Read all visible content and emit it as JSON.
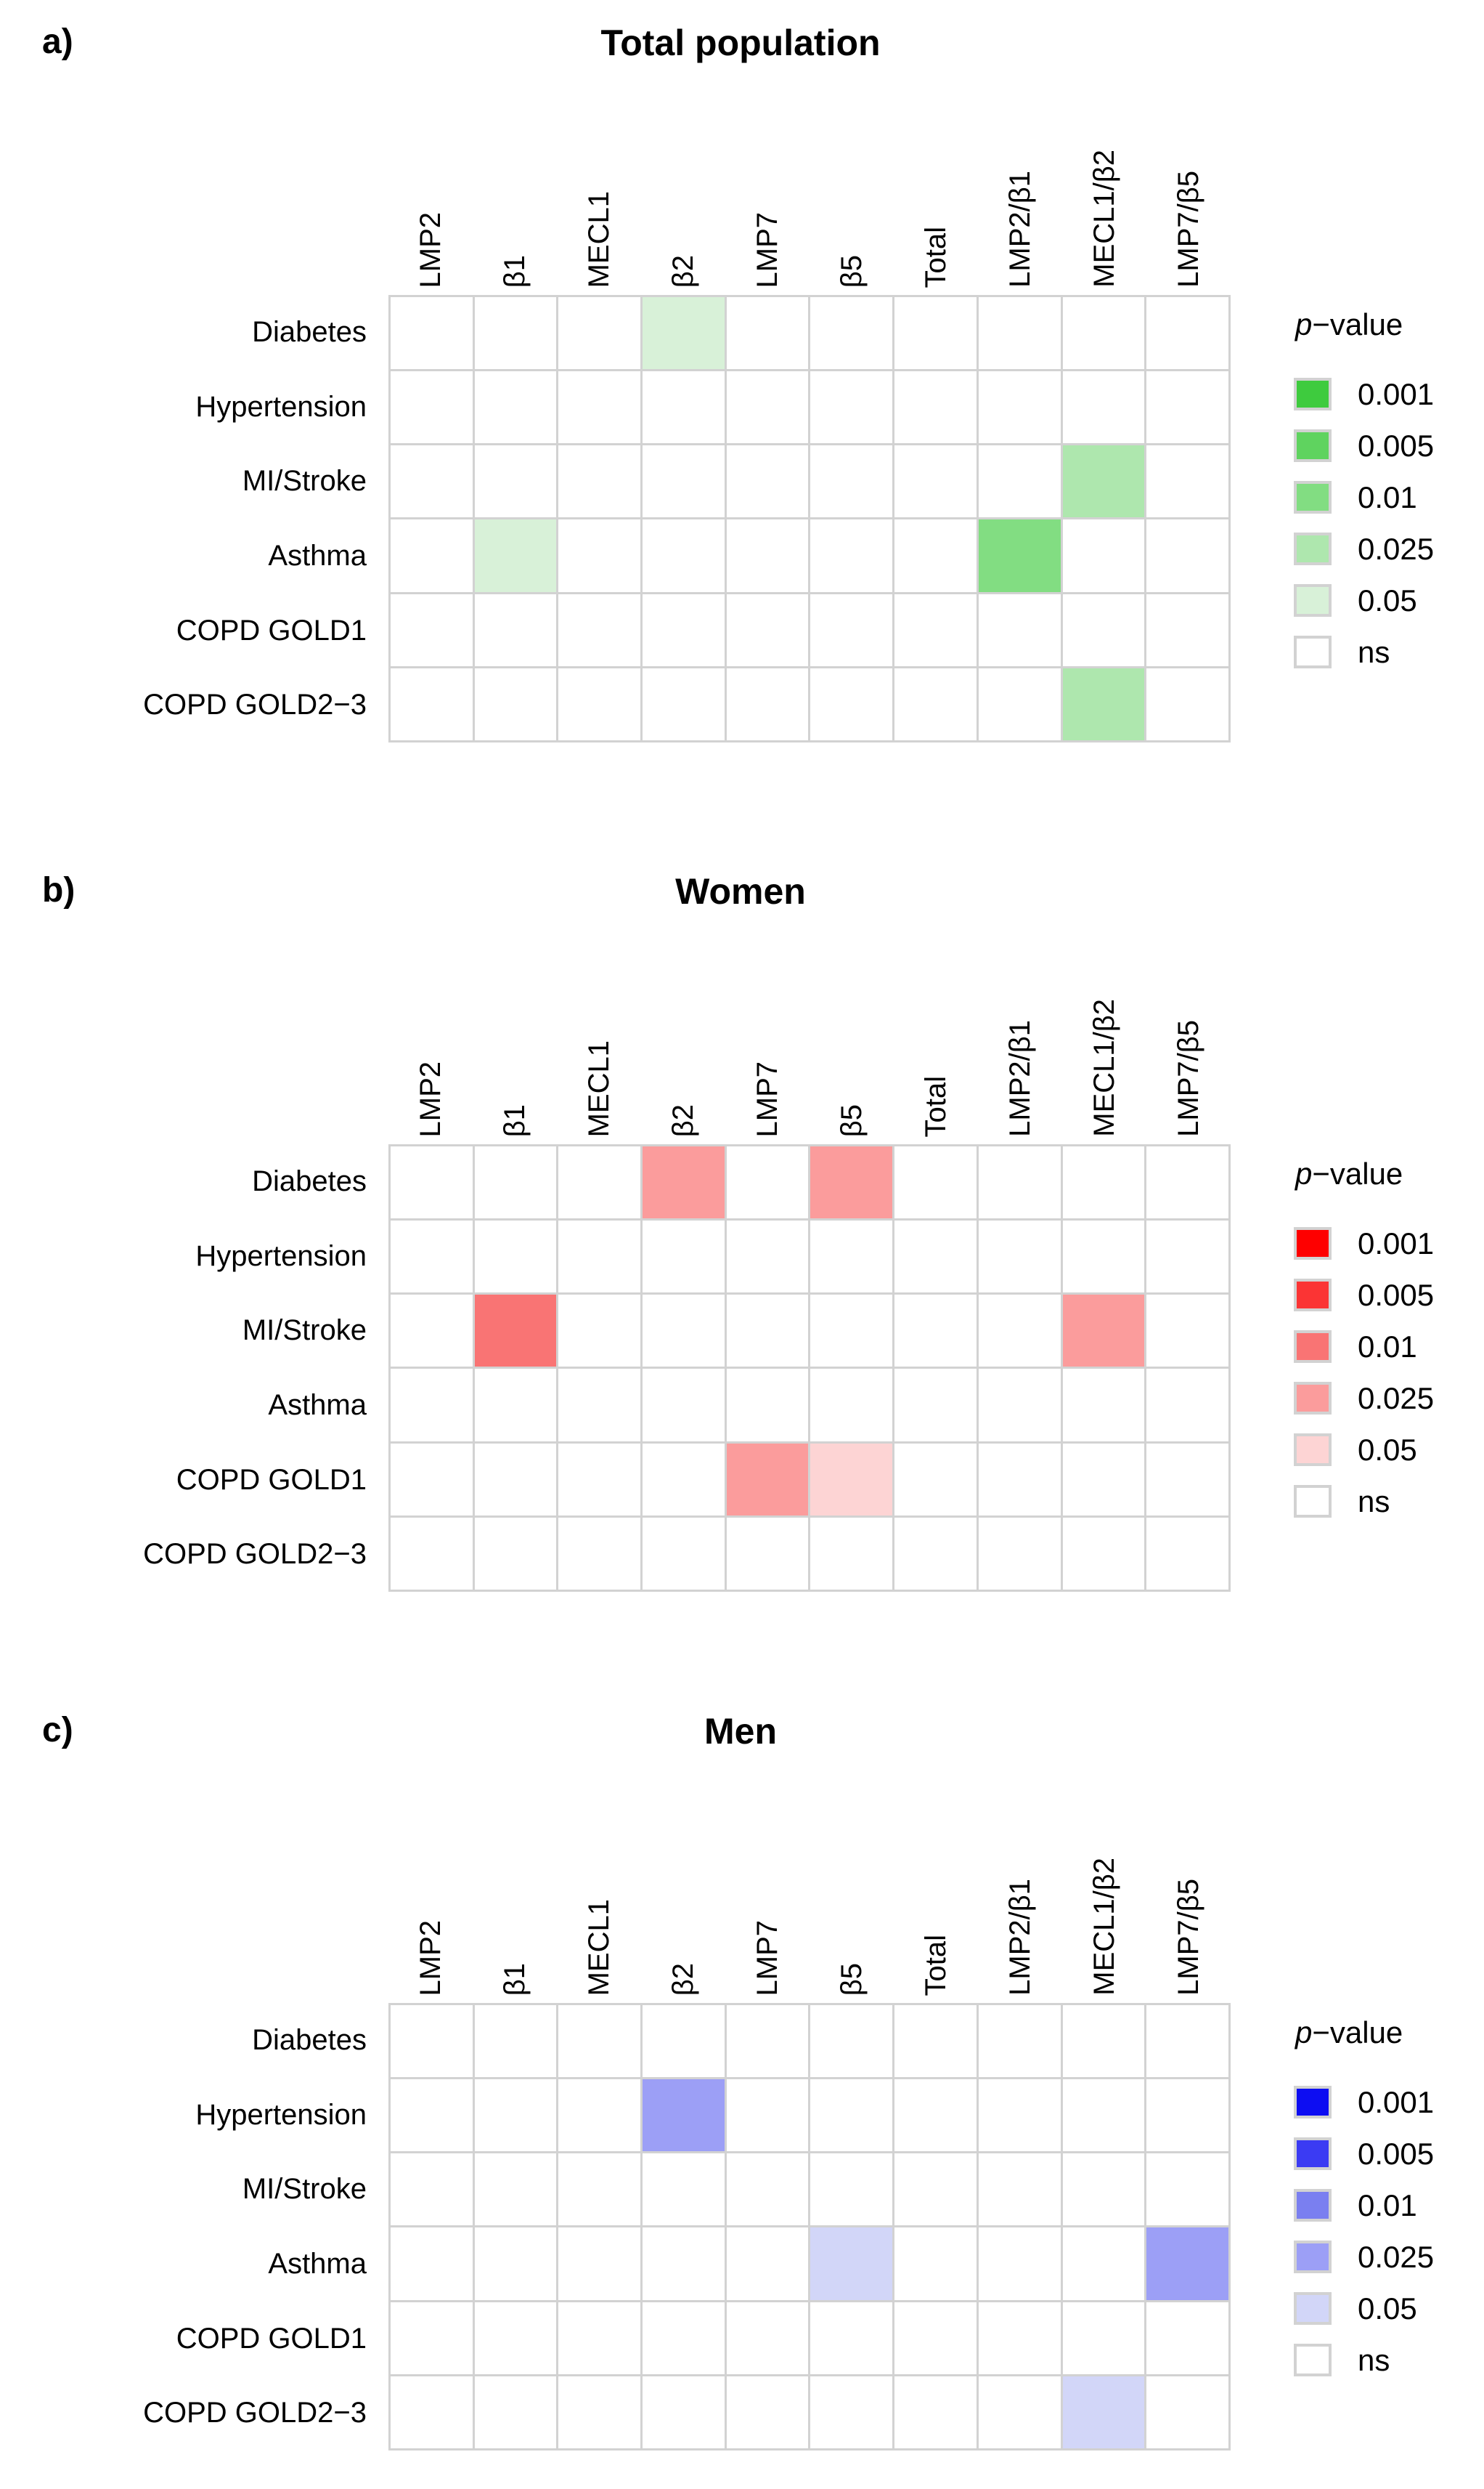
{
  "page": {
    "background": "#ffffff",
    "grid_line_color": "#d2d2d2"
  },
  "shared": {
    "columns": [
      "LMP2",
      "β1",
      "MECL1",
      "β2",
      "LMP7",
      "β5",
      "Total",
      "LMP2/β1",
      "MECL1/β2",
      "LMP7/β5"
    ],
    "rows": [
      "Diabetes",
      "Hypertension",
      "MI/Stroke",
      "Asthma",
      "COPD GOLD1",
      "COPD GOLD2−3"
    ],
    "legend_title": {
      "italic": "p",
      "rest": "−value"
    },
    "levels": [
      "0.001",
      "0.005",
      "0.01",
      "0.025",
      "0.05",
      "ns"
    ]
  },
  "panels": [
    {
      "label": "a)"
    },
    {
      "label": "b)"
    },
    {
      "label": "c)"
    }
  ],
  "chart_data": [
    {
      "type": "heatmap",
      "title": "Total population",
      "columns": [
        "LMP2",
        "β1",
        "MECL1",
        "β2",
        "LMP7",
        "β5",
        "Total",
        "LMP2/β1",
        "MECL1/β2",
        "LMP7/β5"
      ],
      "rows": [
        "Diabetes",
        "Hypertension",
        "MI/Stroke",
        "Asthma",
        "COPD GOLD1",
        "COPD GOLD2−3"
      ],
      "legend_title": "p−value",
      "legend_position": "right",
      "levels": [
        "0.001",
        "0.005",
        "0.01",
        "0.025",
        "0.05",
        "ns"
      ],
      "palette": {
        "0.001": "#3ecb3e",
        "0.005": "#5fd35f",
        "0.01": "#82dd82",
        "0.025": "#aee7ae",
        "0.05": "#d8f1d8",
        "ns": "#ffffff"
      },
      "matrix": [
        [
          "ns",
          "ns",
          "ns",
          "0.05",
          "ns",
          "ns",
          "ns",
          "ns",
          "ns",
          "ns"
        ],
        [
          "ns",
          "ns",
          "ns",
          "ns",
          "ns",
          "ns",
          "ns",
          "ns",
          "ns",
          "ns"
        ],
        [
          "ns",
          "ns",
          "ns",
          "ns",
          "ns",
          "ns",
          "ns",
          "ns",
          "0.025",
          "ns"
        ],
        [
          "ns",
          "0.05",
          "ns",
          "ns",
          "ns",
          "ns",
          "ns",
          "0.01",
          "ns",
          "ns"
        ],
        [
          "ns",
          "ns",
          "ns",
          "ns",
          "ns",
          "ns",
          "ns",
          "ns",
          "ns",
          "ns"
        ],
        [
          "ns",
          "ns",
          "ns",
          "ns",
          "ns",
          "ns",
          "ns",
          "ns",
          "0.025",
          "ns"
        ]
      ]
    },
    {
      "type": "heatmap",
      "title": "Women",
      "columns": [
        "LMP2",
        "β1",
        "MECL1",
        "β2",
        "LMP7",
        "β5",
        "Total",
        "LMP2/β1",
        "MECL1/β2",
        "LMP7/β5"
      ],
      "rows": [
        "Diabetes",
        "Hypertension",
        "MI/Stroke",
        "Asthma",
        "COPD GOLD1",
        "COPD GOLD2−3"
      ],
      "legend_title": "p−value",
      "legend_position": "right",
      "levels": [
        "0.001",
        "0.005",
        "0.01",
        "0.025",
        "0.05",
        "ns"
      ],
      "palette": {
        "0.001": "#fe0000",
        "0.005": "#fb3434",
        "0.01": "#f97474",
        "0.025": "#fb9c9c",
        "0.05": "#fdd4d4",
        "ns": "#ffffff"
      },
      "matrix": [
        [
          "ns",
          "ns",
          "ns",
          "0.025",
          "ns",
          "0.025",
          "ns",
          "ns",
          "ns",
          "ns"
        ],
        [
          "ns",
          "ns",
          "ns",
          "ns",
          "ns",
          "ns",
          "ns",
          "ns",
          "ns",
          "ns"
        ],
        [
          "ns",
          "0.01",
          "ns",
          "ns",
          "ns",
          "ns",
          "ns",
          "ns",
          "0.025",
          "ns"
        ],
        [
          "ns",
          "ns",
          "ns",
          "ns",
          "ns",
          "ns",
          "ns",
          "ns",
          "ns",
          "ns"
        ],
        [
          "ns",
          "ns",
          "ns",
          "ns",
          "0.025",
          "0.05",
          "ns",
          "ns",
          "ns",
          "ns"
        ],
        [
          "ns",
          "ns",
          "ns",
          "ns",
          "ns",
          "ns",
          "ns",
          "ns",
          "ns",
          "ns"
        ]
      ]
    },
    {
      "type": "heatmap",
      "title": "Men",
      "columns": [
        "LMP2",
        "β1",
        "MECL1",
        "β2",
        "LMP7",
        "β5",
        "Total",
        "LMP2/β1",
        "MECL1/β2",
        "LMP7/β5"
      ],
      "rows": [
        "Diabetes",
        "Hypertension",
        "MI/Stroke",
        "Asthma",
        "COPD GOLD1",
        "COPD GOLD2−3"
      ],
      "legend_title": "p−value",
      "legend_position": "right",
      "levels": [
        "0.001",
        "0.005",
        "0.01",
        "0.025",
        "0.05",
        "ns"
      ],
      "palette": {
        "0.001": "#0d0df2",
        "0.005": "#3b3bf3",
        "0.01": "#7a7ff0",
        "0.025": "#9c9ff6",
        "0.05": "#d2d6f8",
        "ns": "#ffffff"
      },
      "matrix": [
        [
          "ns",
          "ns",
          "ns",
          "ns",
          "ns",
          "ns",
          "ns",
          "ns",
          "ns",
          "ns"
        ],
        [
          "ns",
          "ns",
          "ns",
          "0.025",
          "ns",
          "ns",
          "ns",
          "ns",
          "ns",
          "ns"
        ],
        [
          "ns",
          "ns",
          "ns",
          "ns",
          "ns",
          "ns",
          "ns",
          "ns",
          "ns",
          "ns"
        ],
        [
          "ns",
          "ns",
          "ns",
          "ns",
          "ns",
          "0.05",
          "ns",
          "ns",
          "ns",
          "0.025"
        ],
        [
          "ns",
          "ns",
          "ns",
          "ns",
          "ns",
          "ns",
          "ns",
          "ns",
          "ns",
          "ns"
        ],
        [
          "ns",
          "ns",
          "ns",
          "ns",
          "ns",
          "ns",
          "ns",
          "ns",
          "0.05",
          "ns"
        ]
      ]
    }
  ]
}
